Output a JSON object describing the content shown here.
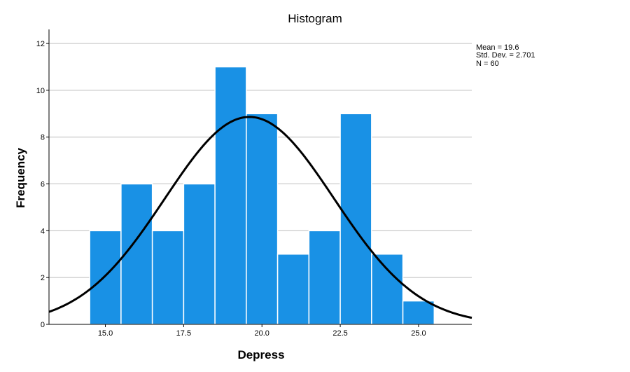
{
  "chart_data": {
    "type": "bar",
    "title": "Histogram",
    "xlabel": "Depress",
    "ylabel": "Frequency",
    "xlim": [
      13.2,
      26.7
    ],
    "ylim": [
      0,
      12.6
    ],
    "x_ticks": [
      15.0,
      17.5,
      20.0,
      22.5,
      25.0
    ],
    "x_tick_labels": [
      "15.0",
      "17.5",
      "20.0",
      "22.5",
      "25.0"
    ],
    "y_ticks": [
      0,
      2,
      4,
      6,
      8,
      10,
      12
    ],
    "y_tick_labels": [
      "0",
      "2",
      "4",
      "6",
      "8",
      "10",
      "12"
    ],
    "grid": true,
    "bins": [
      {
        "start": 14.5,
        "end": 15.5,
        "count": 4
      },
      {
        "start": 15.5,
        "end": 16.5,
        "count": 6
      },
      {
        "start": 16.5,
        "end": 17.5,
        "count": 4
      },
      {
        "start": 17.5,
        "end": 18.5,
        "count": 6
      },
      {
        "start": 18.5,
        "end": 19.5,
        "count": 11
      },
      {
        "start": 19.5,
        "end": 20.5,
        "count": 9
      },
      {
        "start": 20.5,
        "end": 21.5,
        "count": 3
      },
      {
        "start": 21.5,
        "end": 22.5,
        "count": 4
      },
      {
        "start": 22.5,
        "end": 23.5,
        "count": 9
      },
      {
        "start": 23.5,
        "end": 24.5,
        "count": 3
      },
      {
        "start": 24.5,
        "end": 25.5,
        "count": 1
      }
    ],
    "normal_curve": {
      "mean": 19.6,
      "sd": 2.701,
      "n": 60,
      "bin_width": 1.0
    },
    "stats": {
      "mean": "Mean = 19.6",
      "sd": "Std. Dev. = 2.701",
      "n": "N = 60"
    },
    "legend_position": "top-right",
    "colors": {
      "bar": "#1991e5",
      "curve": "#000000",
      "grid": "#bdbdbd"
    }
  }
}
